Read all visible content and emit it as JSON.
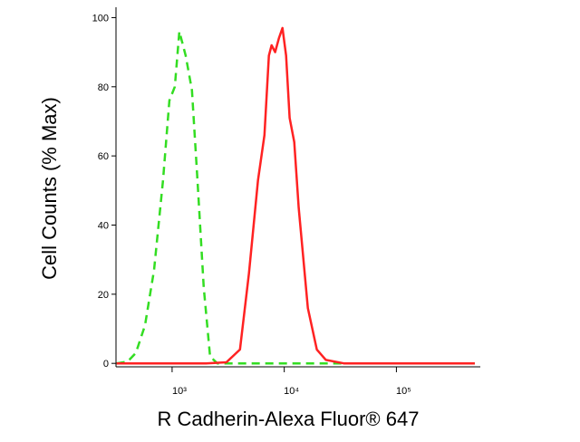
{
  "chart_data": {
    "type": "line",
    "xlabel": "R Cadherin-Alexa Fluor® 647",
    "ylabel": "Cell Counts (% Max)",
    "xscale": "log",
    "xlim": [
      316,
      560000
    ],
    "ylim": [
      -1,
      103
    ],
    "xticks": [
      {
        "value": 1000,
        "label": "10³"
      },
      {
        "value": 10000,
        "label": "10⁴"
      },
      {
        "value": 100000,
        "label": "10⁵"
      }
    ],
    "yticks": [
      0,
      20,
      40,
      60,
      80,
      100
    ],
    "series": [
      {
        "color": "#33dd22",
        "dash": true,
        "x": [
          320,
          400,
          475,
          573,
          690,
          830,
          946,
          1057,
          1161,
          1321,
          1504,
          1683,
          1915,
          2181,
          2530,
          5000,
          50000,
          500000
        ],
        "values": [
          0,
          0.5,
          3,
          11,
          27,
          53,
          76,
          80,
          96,
          89,
          79,
          53,
          22,
          2,
          0,
          0,
          0,
          0
        ]
      },
      {
        "color": "#ff2222",
        "dash": false,
        "x": [
          320,
          2000,
          3048,
          4027,
          4842,
          5834,
          6652,
          7295,
          7711,
          8300,
          8954,
          9636,
          10380,
          11170,
          12270,
          13450,
          16220,
          19500,
          23500,
          34000,
          100000,
          500000
        ],
        "values": [
          0,
          0,
          0.3,
          4,
          26,
          53,
          66,
          89,
          92,
          90,
          94,
          97,
          89,
          71,
          64,
          45,
          16,
          4,
          1,
          0,
          0,
          0
        ]
      }
    ]
  }
}
